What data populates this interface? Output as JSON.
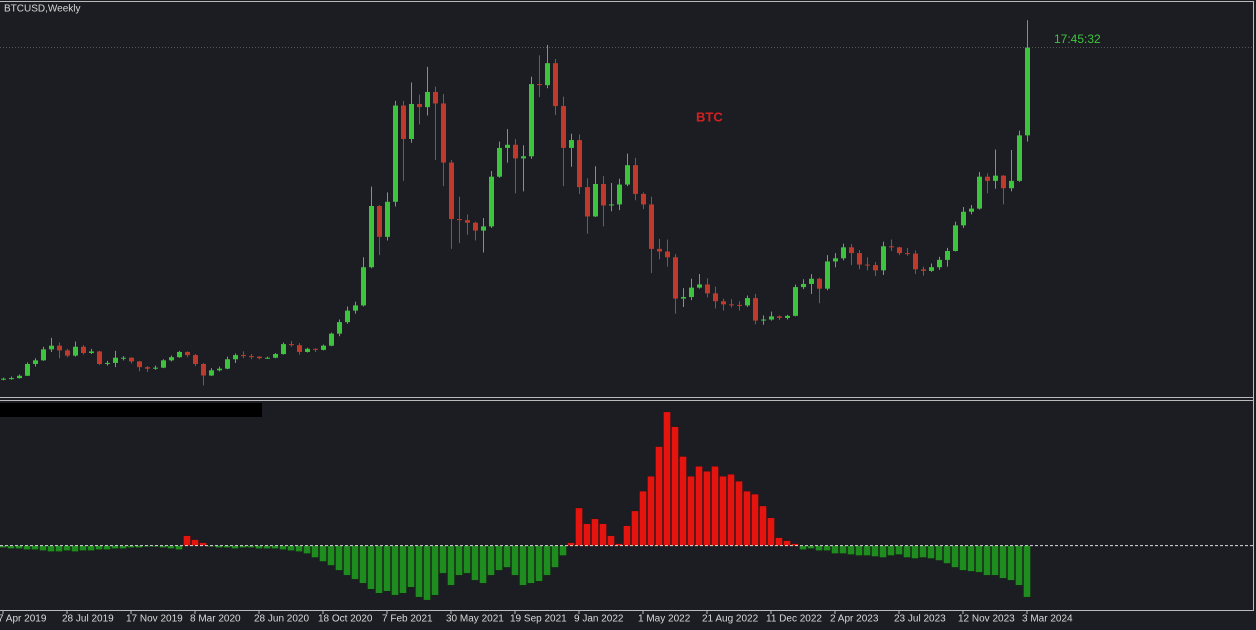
{
  "chart_data": [
    {
      "type": "candlestick",
      "title": "BTCUSD,Weekly",
      "annotation": "BTC",
      "timer": "17:45:32",
      "categories": [
        "7 Apr 2019",
        null,
        null,
        null,
        null,
        null,
        null,
        null,
        "28 Jul 2019",
        null,
        null,
        null,
        null,
        null,
        null,
        null,
        "17 Nov 2019",
        null,
        null,
        null,
        null,
        null,
        null,
        null,
        "8 Mar 2020",
        null,
        null,
        null,
        null,
        null,
        null,
        null,
        "28 Jun 2020",
        null,
        null,
        null,
        null,
        null,
        null,
        null,
        "18 Oct 2020",
        null,
        null,
        null,
        null,
        null,
        null,
        null,
        "7 Feb 2021",
        null,
        null,
        null,
        null,
        null,
        null,
        null,
        "30 May 2021",
        null,
        null,
        null,
        null,
        null,
        null,
        null,
        "19 Sep 2021",
        null,
        null,
        null,
        null,
        null,
        null,
        null,
        "9 Jan 2022",
        null,
        null,
        null,
        null,
        null,
        null,
        null,
        "1 May 2022",
        null,
        null,
        null,
        null,
        null,
        null,
        null,
        "21 Aug 2022",
        null,
        null,
        null,
        null,
        null,
        null,
        null,
        "11 Dec 2022",
        null,
        null,
        null,
        null,
        null,
        null,
        null,
        "2 Apr 2023",
        null,
        null,
        null,
        null,
        null,
        null,
        null,
        "23 Jul 2023",
        null,
        null,
        null,
        null,
        null,
        null,
        null,
        "12 Nov 2023",
        null,
        null,
        null,
        null,
        null,
        null,
        null,
        "3 Mar 2024"
      ],
      "open": [
        5000,
        5200,
        5300,
        5750,
        8000,
        8700,
        10800,
        11500,
        10600,
        9600,
        11300,
        10100,
        10400,
        8000,
        8200,
        9200,
        9200,
        8500,
        7400,
        7100,
        7300,
        8700,
        9300,
        10300,
        9700,
        8000,
        5800,
        6800,
        7100,
        8900,
        9700,
        9500,
        9400,
        9100,
        9200,
        9900,
        11800,
        11600,
        10300,
        10900,
        10700,
        11500,
        13800,
        16000,
        18200,
        19200,
        26500,
        38200,
        32300,
        39000,
        57400,
        51000,
        57700,
        57100,
        60000,
        57800,
        46500,
        35700,
        35500,
        35000,
        33500,
        34300,
        43800,
        49300,
        49900,
        47300,
        47700,
        61500,
        61300,
        65500,
        57300,
        49300,
        50800,
        41800,
        36200,
        42400,
        38300,
        38500,
        42300,
        46000,
        40500,
        38500,
        30000,
        29500,
        28400,
        20500,
        20800,
        22600,
        23200,
        21500,
        20000,
        19400,
        19300,
        19200,
        20600,
        16300,
        16500,
        17100,
        16800,
        17200,
        22700,
        23300,
        24300,
        22400,
        27600,
        28200,
        30300,
        29200,
        27000,
        26900,
        25900,
        30500,
        30300,
        29200,
        29100,
        26100,
        25800,
        26500,
        27900,
        29600,
        34500,
        37100,
        37700,
        43800,
        43000,
        44000,
        41600,
        43000,
        51700
      ],
      "high": [
        5400,
        5600,
        6000,
        8300,
        9100,
        11300,
        13000,
        12100,
        10900,
        12300,
        11600,
        10900,
        10500,
        8600,
        10500,
        9500,
        9300,
        8600,
        7600,
        7700,
        8900,
        9600,
        10500,
        10400,
        9900,
        8200,
        7200,
        7500,
        9400,
        10000,
        10400,
        9900,
        9500,
        9400,
        10100,
        12100,
        12400,
        12000,
        11100,
        11000,
        11700,
        14000,
        16500,
        19000,
        19900,
        28400,
        41900,
        38400,
        40800,
        58300,
        58300,
        61800,
        59500,
        64800,
        61000,
        59600,
        47000,
        40000,
        36600,
        35200,
        35900,
        44900,
        50500,
        52900,
        51000,
        49800,
        62900,
        67000,
        69000,
        66300,
        59100,
        52000,
        51900,
        43500,
        45800,
        43900,
        42600,
        43400,
        48200,
        47400,
        40800,
        40000,
        31900,
        31800,
        29000,
        22500,
        24300,
        25200,
        24400,
        22800,
        20500,
        20400,
        20000,
        21100,
        21400,
        17300,
        18000,
        17300,
        17400,
        23200,
        24200,
        25200,
        24500,
        28800,
        29200,
        31000,
        30900,
        29800,
        28400,
        27500,
        31400,
        31800,
        30400,
        30200,
        29700,
        26600,
        27200,
        28500,
        30200,
        35200,
        38000,
        38400,
        44700,
        44400,
        49000,
        44100,
        48900,
        52600,
        73700
      ],
      "low": [
        4900,
        5000,
        5200,
        5700,
        7500,
        8600,
        10300,
        9100,
        9300,
        9400,
        9800,
        9900,
        7800,
        7700,
        7400,
        8700,
        8100,
        6600,
        6500,
        6900,
        7200,
        8500,
        9200,
        9300,
        7600,
        3900,
        5700,
        6600,
        7000,
        8200,
        9100,
        8900,
        8900,
        9000,
        9100,
        9800,
        11300,
        9800,
        10200,
        10300,
        10600,
        11400,
        13300,
        15700,
        17600,
        19000,
        26300,
        28800,
        31600,
        38100,
        43000,
        50300,
        53800,
        55500,
        47000,
        42000,
        30000,
        31100,
        32700,
        31600,
        29300,
        34000,
        43600,
        46500,
        40600,
        41000,
        47200,
        59000,
        60700,
        55600,
        42000,
        45700,
        40500,
        32900,
        36100,
        34300,
        37200,
        37400,
        42000,
        39300,
        37600,
        25400,
        28000,
        26600,
        17600,
        18900,
        20200,
        22400,
        20700,
        18600,
        18200,
        18800,
        18200,
        18900,
        15600,
        15500,
        16300,
        16400,
        16500,
        17100,
        22300,
        21400,
        19600,
        22100,
        26500,
        27800,
        26900,
        26100,
        25900,
        24800,
        25000,
        29600,
        28800,
        28700,
        25200,
        24900,
        25600,
        26000,
        26600,
        29500,
        34000,
        36600,
        37500,
        40600,
        41500,
        38500,
        41000,
        42800,
        50500
      ],
      "close": [
        5200,
        5300,
        5750,
        8000,
        8700,
        10800,
        11500,
        10600,
        9600,
        11300,
        10100,
        10400,
        8000,
        8200,
        9200,
        9200,
        8500,
        7400,
        7100,
        7300,
        8700,
        9300,
        10300,
        9700,
        8000,
        5800,
        6800,
        7100,
        8900,
        9700,
        9500,
        9400,
        9100,
        9200,
        9900,
        11800,
        11600,
        10300,
        10900,
        10700,
        11500,
        13800,
        16000,
        18200,
        19200,
        26500,
        38200,
        32300,
        39000,
        57400,
        51000,
        57700,
        57100,
        60000,
        57800,
        46500,
        35700,
        35500,
        35000,
        33500,
        34300,
        43800,
        49300,
        49900,
        47300,
        47700,
        61500,
        61300,
        65500,
        57300,
        49300,
        50800,
        41800,
        36200,
        42400,
        38300,
        38500,
        42300,
        46000,
        40500,
        38500,
        30000,
        29500,
        28400,
        20500,
        20800,
        22600,
        23200,
        21500,
        20000,
        19400,
        19300,
        19200,
        20600,
        16300,
        16500,
        17100,
        16800,
        17200,
        22700,
        23300,
        24300,
        22400,
        27600,
        28200,
        30300,
        29200,
        27000,
        26900,
        25900,
        30500,
        30300,
        29200,
        29100,
        26100,
        25800,
        26500,
        27900,
        29600,
        34500,
        37100,
        37700,
        43800,
        43000,
        44000,
        41600,
        43000,
        51700,
        68500
      ],
      "up_color": "#3cc43c",
      "down_color": "#c0392b",
      "ylim": [
        1500,
        77000
      ]
    },
    {
      "type": "histogram",
      "values": [
        -2,
        -3,
        -3,
        -4,
        -4,
        -5,
        -6,
        -6,
        -5,
        -6,
        -5,
        -5,
        -4,
        -4,
        -3,
        -3,
        -2,
        -2,
        -1,
        -1,
        -2,
        -3,
        -4,
        10,
        6,
        3,
        -1,
        -2,
        -2,
        -3,
        -2,
        -2,
        -3,
        -3,
        -3,
        -4,
        -5,
        -6,
        -8,
        -12,
        -16,
        -20,
        -25,
        -30,
        -34,
        -38,
        -44,
        -48,
        -46,
        -50,
        -48,
        -42,
        -52,
        -55,
        -50,
        -28,
        -40,
        -30,
        -28,
        -35,
        -38,
        -30,
        -25,
        -22,
        -30,
        -40,
        -38,
        -36,
        -30,
        -22,
        -10,
        3,
        38,
        22,
        27,
        22,
        10,
        2,
        20,
        35,
        55,
        70,
        100,
        135,
        120,
        90,
        70,
        80,
        75,
        80,
        70,
        72,
        65,
        55,
        52,
        40,
        28,
        8,
        5,
        2,
        -4,
        -3,
        -5,
        -5,
        -8,
        -8,
        -9,
        -10,
        -10,
        -11,
        -12,
        -10,
        -9,
        -12,
        -13,
        -12,
        -13,
        -15,
        -18,
        -22,
        -25,
        -26,
        -27,
        -30,
        -30,
        -33,
        -35,
        -40,
        -52
      ],
      "positive_color": "#e5140f",
      "negative_color": "#1f8c1f",
      "ylim": [
        -65,
        145
      ],
      "zero_line": true
    }
  ]
}
